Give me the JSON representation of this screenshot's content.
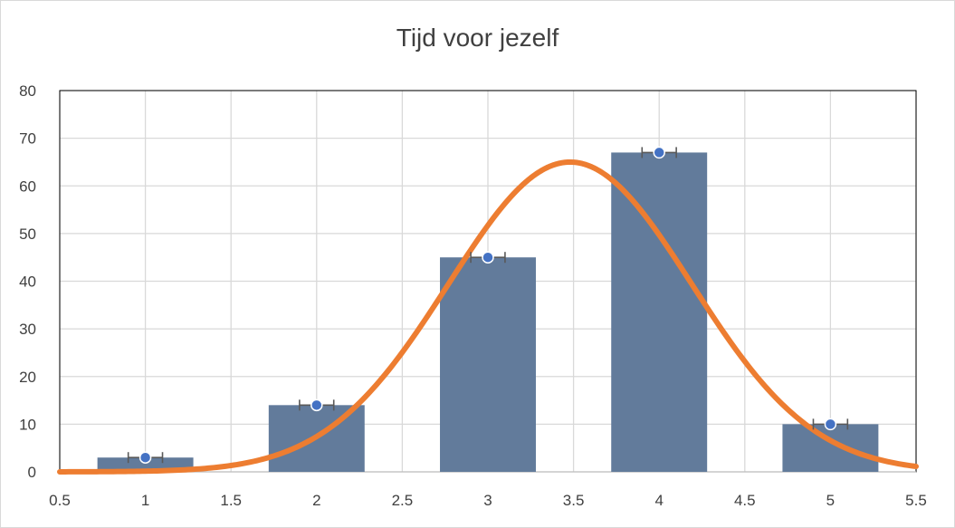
{
  "chart_data": {
    "type": "bar",
    "title": "Tijd voor jezelf",
    "xlabel": "",
    "ylabel": "",
    "xlim": [
      0.5,
      5.5
    ],
    "ylim": [
      0,
      80
    ],
    "x_ticks": [
      "0.5",
      "1",
      "1.5",
      "2",
      "2.5",
      "3",
      "3.5",
      "4",
      "4.5",
      "5",
      "5.5"
    ],
    "y_ticks": [
      "0",
      "10",
      "20",
      "30",
      "40",
      "50",
      "60",
      "70",
      "80"
    ],
    "grid": true,
    "bars": {
      "x": [
        1,
        2,
        3,
        4,
        5
      ],
      "values": [
        3,
        14,
        45,
        67,
        10
      ],
      "color": "#627b9b"
    },
    "points": {
      "x": [
        1,
        2,
        3,
        4,
        5
      ],
      "values": [
        3,
        14,
        45,
        67,
        10
      ],
      "color": "#4472c4",
      "error_x": 0.1
    },
    "curve": {
      "type": "normal",
      "mean": 3.48,
      "sd": 0.71,
      "peak": 65,
      "color": "#ed7d31"
    }
  }
}
